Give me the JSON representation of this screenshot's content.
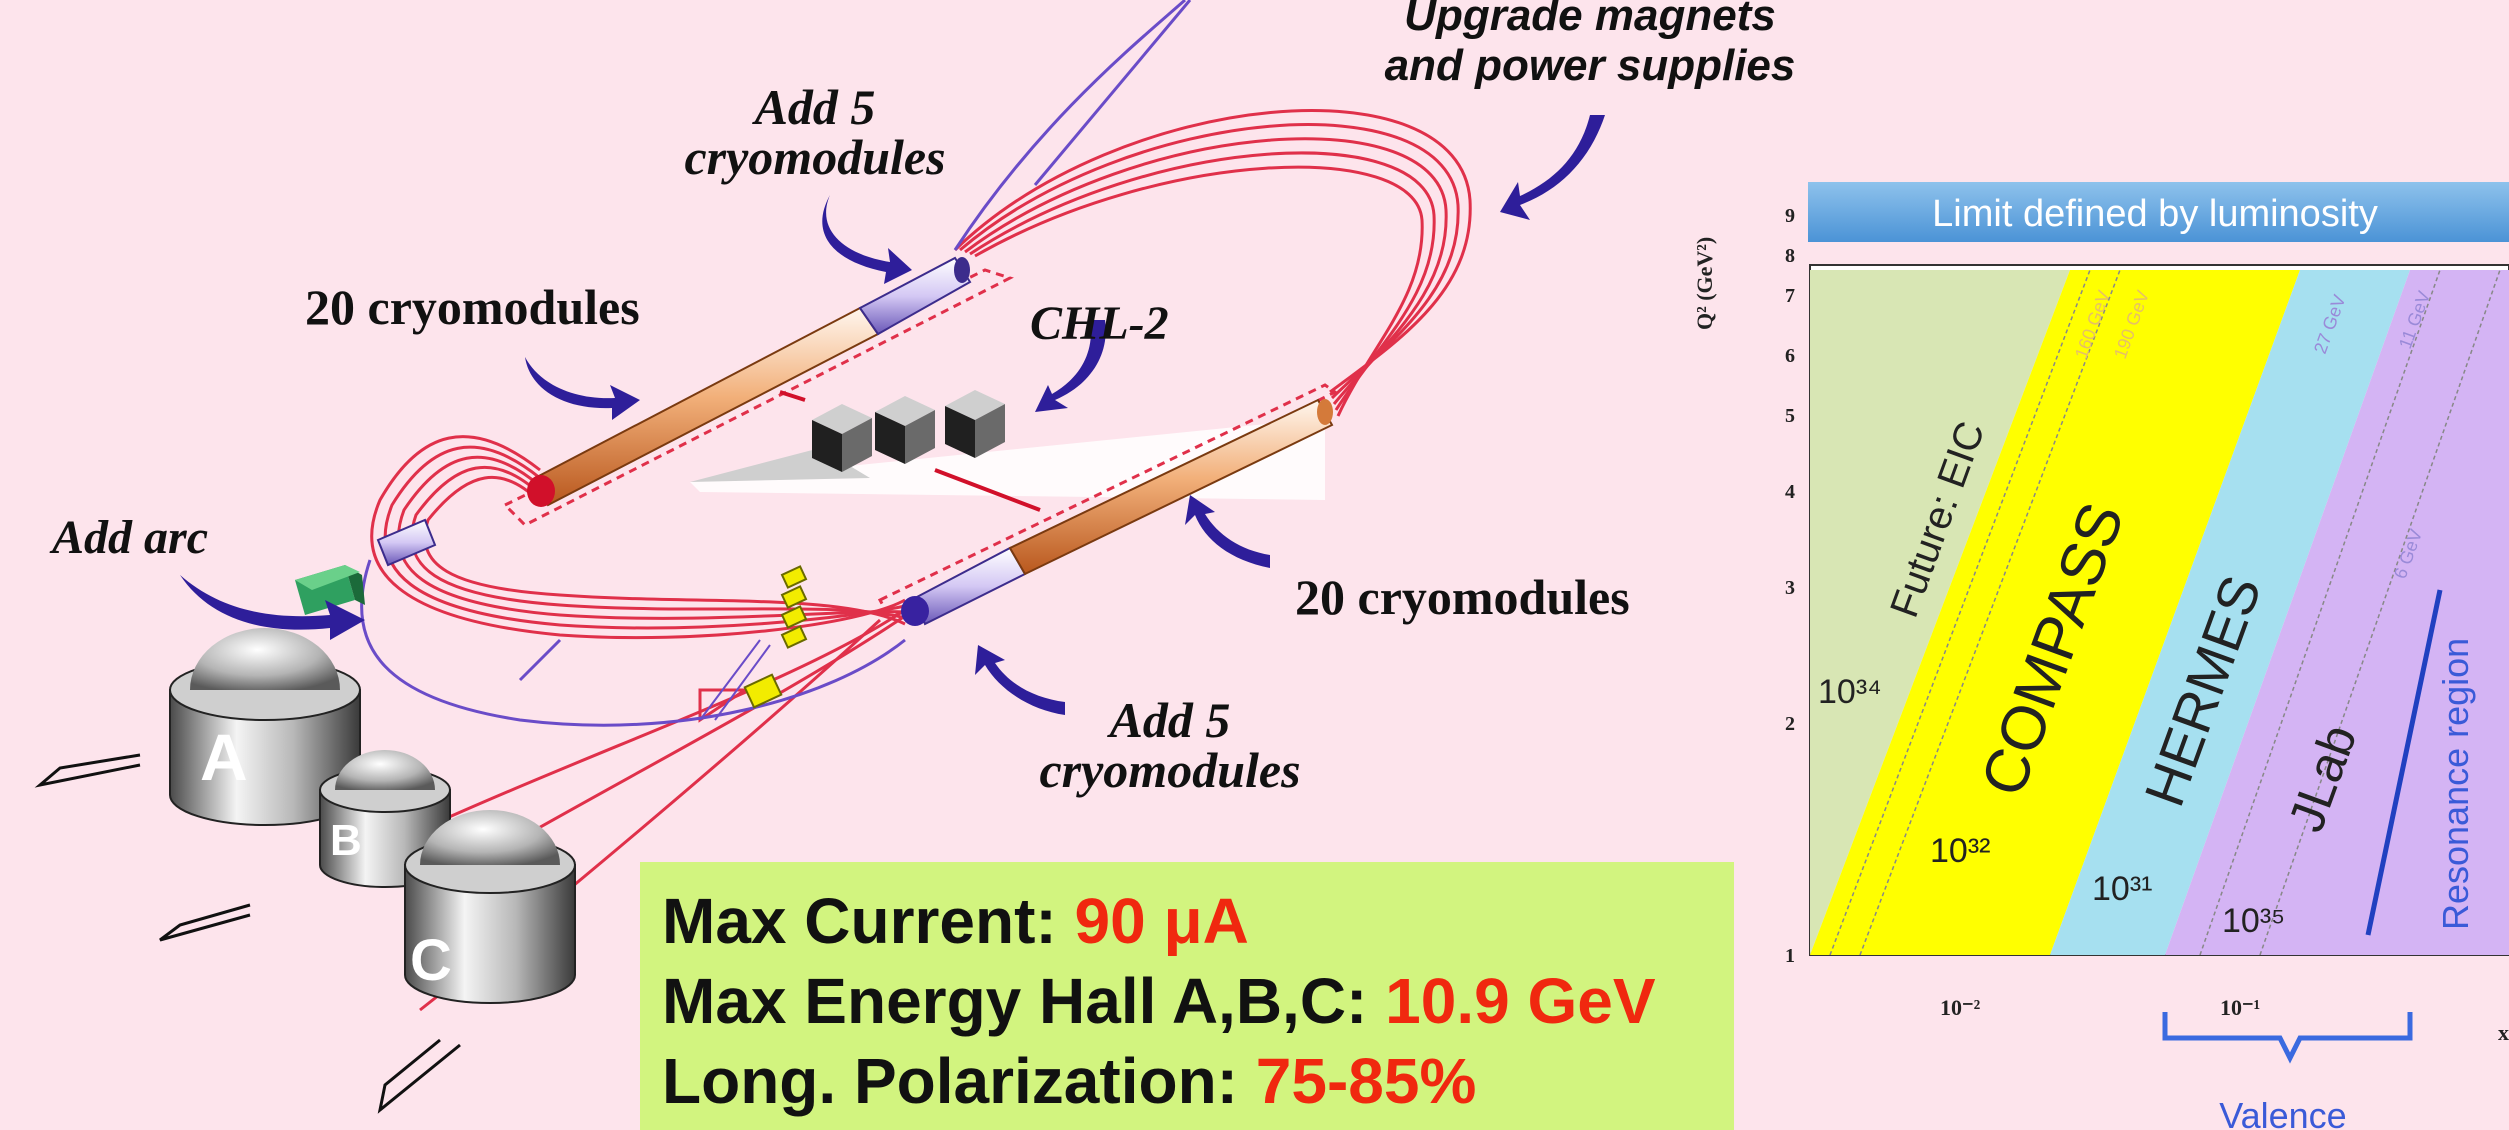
{
  "accelerator": {
    "labels": {
      "upgrade_magnets": [
        "Upgrade magnets",
        "and power supplies"
      ],
      "add5_top": [
        "Add 5",
        "cryomodules"
      ],
      "cryo20_left": "20 cryomodules",
      "chl2": "CHL-2",
      "add_arc": "Add arc",
      "cryo20_right": "20 cryomodules",
      "add5_bottom": [
        "Add 5",
        "cryomodules"
      ]
    },
    "halls": [
      "A",
      "B",
      "C"
    ]
  },
  "specs": {
    "current_label": "Max Current: ",
    "current_value": "90 μA",
    "energy_label": "Max Energy Hall A,B,C: ",
    "energy_value": "10.9 GeV",
    "polarization_label": "Long. Polarization: ",
    "polarization_value": "75-85%"
  },
  "kinematics_plot": {
    "banner": "Limit defined by luminosity",
    "y_axis_label": "Q² (GeV²)",
    "y_ticks": [
      "9",
      "8",
      "7",
      "6",
      "5",
      "4",
      "3",
      "2",
      "1"
    ],
    "x_ticks": [
      "10⁻²",
      "10⁻¹"
    ],
    "x_axis_label": "x",
    "regions": [
      {
        "name": "Future: EIC",
        "luminosity": "10³⁴",
        "color": "#d8e6b4"
      },
      {
        "name": "COMPASS",
        "luminosity": "10³²",
        "color": "#ffff00"
      },
      {
        "name": "HERMES",
        "luminosity": "10³¹",
        "color": "#a6e0f0"
      },
      {
        "name": "JLab",
        "luminosity": "10³⁵",
        "color": "#d4b4f4"
      }
    ],
    "beam_energies": [
      "160 GeV",
      "190 GeV",
      "27 GeV",
      "11 GeV",
      "6 GeV"
    ],
    "resonance_label": "Resonance region",
    "valence_label": "Valence"
  }
}
